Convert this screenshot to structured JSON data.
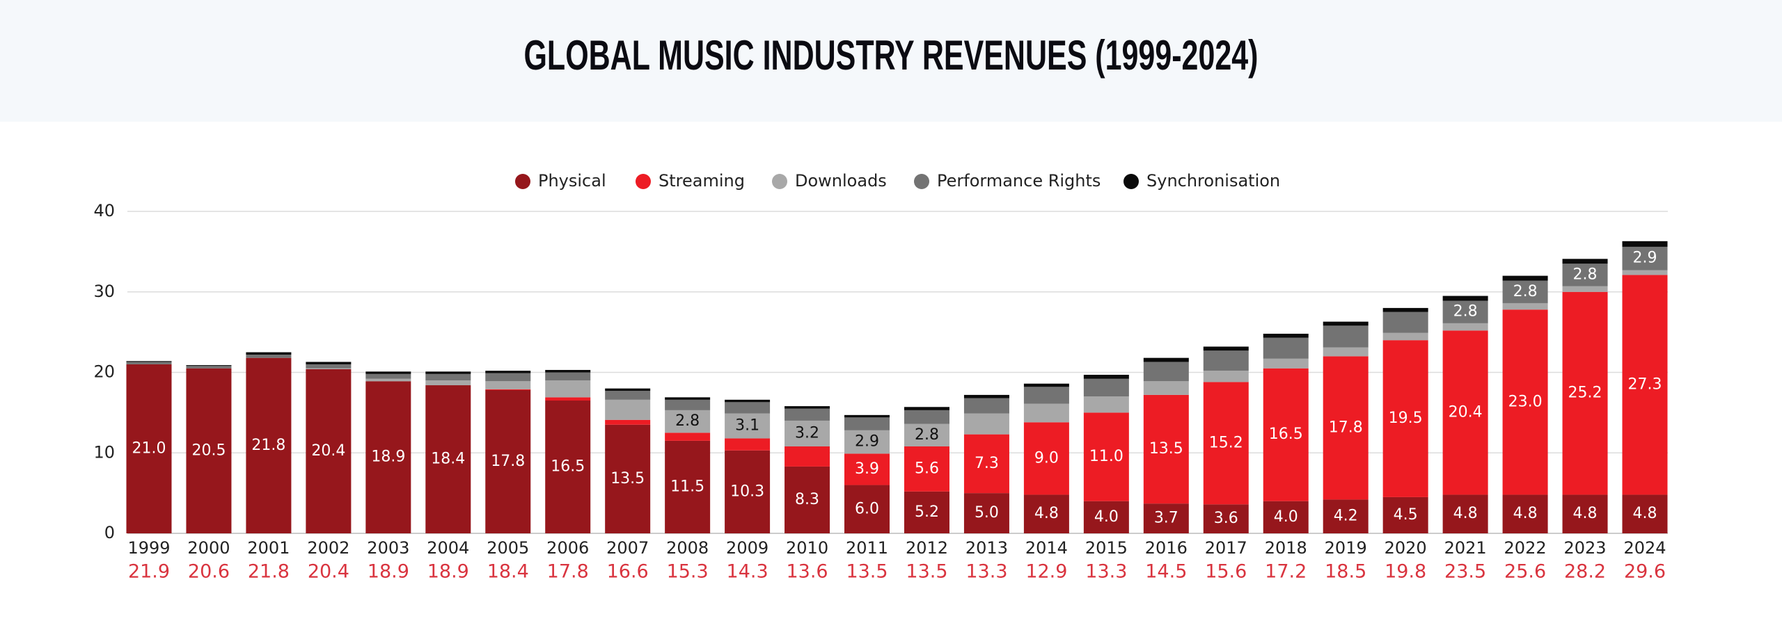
{
  "chart_data": {
    "type": "stacked_bar",
    "title": "GLOBAL MUSIC INDUSTRY REVENUES (1999-2024)",
    "categories": [
      "1999",
      "2000",
      "2001",
      "2002",
      "2003",
      "2004",
      "2005",
      "2006",
      "2007",
      "2008",
      "2009",
      "2010",
      "2011",
      "2012",
      "2013",
      "2014",
      "2015",
      "2016",
      "2017",
      "2018",
      "2019",
      "2020",
      "2021",
      "2022",
      "2023",
      "2024"
    ],
    "series": [
      {
        "name": "Physical",
        "color": "#96171c",
        "label_color": "#ffffff",
        "values": [
          21.0,
          20.5,
          21.8,
          20.4,
          18.9,
          18.4,
          17.8,
          16.5,
          13.5,
          11.5,
          10.3,
          8.3,
          6.0,
          5.2,
          5.0,
          4.8,
          4.0,
          3.7,
          3.6,
          4.0,
          4.2,
          4.5,
          4.8,
          4.8,
          4.8,
          4.8
        ],
        "value_labels": [
          "21.0",
          "20.5",
          "21.8",
          "20.4",
          "18.9",
          "18.4",
          "17.8",
          "16.5",
          "13.5",
          "11.5",
          "10.3",
          "8.3",
          "6.0",
          "5.2",
          "5.0",
          "4.8",
          "4.0",
          "3.7",
          "3.6",
          "4.0",
          "4.2",
          "4.5",
          "4.8",
          "4.8",
          "4.8",
          "4.8"
        ]
      },
      {
        "name": "Streaming",
        "color": "#ed1c24",
        "label_color": "#ffffff",
        "values": [
          0,
          0,
          0,
          0,
          0,
          0,
          0.1,
          0.4,
          0.6,
          1.0,
          1.5,
          2.5,
          3.9,
          5.6,
          7.3,
          9.0,
          11.0,
          13.5,
          15.2,
          16.5,
          17.8,
          19.5,
          20.4,
          23.0,
          25.2,
          27.3
        ],
        "value_labels": [
          null,
          null,
          null,
          null,
          null,
          null,
          null,
          null,
          null,
          null,
          null,
          null,
          "3.9",
          "5.6",
          "7.3",
          "9.0",
          "11.0",
          "13.5",
          "15.2",
          "16.5",
          "17.8",
          "19.5",
          "20.4",
          "23.0",
          "25.2",
          "27.3"
        ]
      },
      {
        "name": "Downloads",
        "color": "#a8a8a8",
        "label_color": "#111111",
        "values": [
          0,
          0,
          0,
          0.1,
          0.3,
          0.6,
          1.0,
          2.1,
          2.5,
          2.8,
          3.1,
          3.2,
          2.9,
          2.8,
          2.6,
          2.3,
          2.0,
          1.7,
          1.4,
          1.2,
          1.1,
          0.9,
          0.9,
          0.8,
          0.7,
          0.6
        ],
        "value_labels": [
          null,
          null,
          null,
          null,
          null,
          null,
          null,
          null,
          null,
          "2.8",
          "3.1",
          "3.2",
          "2.9",
          "2.8",
          null,
          null,
          null,
          null,
          null,
          null,
          null,
          null,
          null,
          null,
          null,
          null
        ]
      },
      {
        "name": "Performance Rights",
        "color": "#737373",
        "label_color": "#ffffff",
        "values": [
          0.3,
          0.3,
          0.4,
          0.5,
          0.6,
          0.8,
          1.0,
          1.0,
          1.1,
          1.3,
          1.4,
          1.5,
          1.6,
          1.7,
          1.9,
          2.1,
          2.2,
          2.4,
          2.5,
          2.6,
          2.7,
          2.6,
          2.8,
          2.8,
          2.8,
          2.9
        ],
        "value_labels": [
          null,
          null,
          null,
          null,
          null,
          null,
          null,
          null,
          null,
          null,
          null,
          null,
          null,
          null,
          null,
          null,
          null,
          null,
          null,
          null,
          null,
          null,
          "2.8",
          "2.8",
          "2.8",
          "2.9"
        ]
      },
      {
        "name": "Synchronisation",
        "color": "#0a0a0a",
        "label_color": "#ffffff",
        "values": [
          0.1,
          0.1,
          0.3,
          0.3,
          0.3,
          0.3,
          0.3,
          0.3,
          0.3,
          0.3,
          0.3,
          0.3,
          0.3,
          0.4,
          0.4,
          0.4,
          0.5,
          0.5,
          0.5,
          0.5,
          0.5,
          0.5,
          0.6,
          0.6,
          0.6,
          0.7
        ],
        "value_labels": [
          null,
          null,
          null,
          null,
          null,
          null,
          null,
          null,
          null,
          null,
          null,
          null,
          null,
          null,
          null,
          null,
          null,
          null,
          null,
          null,
          null,
          null,
          null,
          null,
          null,
          null
        ]
      }
    ],
    "bottom_labels": [
      "21.9",
      "20.6",
      "21.8",
      "20.4",
      "18.9",
      "18.9",
      "18.4",
      "17.8",
      "16.6",
      "15.3",
      "14.3",
      "13.6",
      "13.5",
      "13.5",
      "13.3",
      "12.9",
      "13.3",
      "14.5",
      "15.6",
      "17.2",
      "18.5",
      "19.8",
      "23.5",
      "25.6",
      "28.2",
      "29.6"
    ],
    "bottom_label_color": "#d9343f",
    "ylim": [
      0,
      40
    ],
    "yticks": [
      0,
      10,
      20,
      30,
      40
    ],
    "grid": true,
    "legend": "top"
  }
}
